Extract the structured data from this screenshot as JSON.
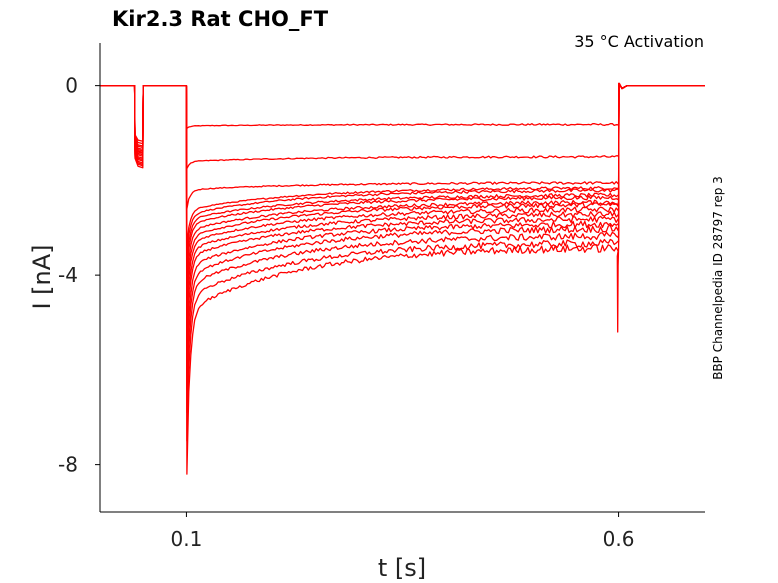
{
  "chart_data": {
    "type": "line",
    "title": "Kir2.3  Rat  CHO_FT",
    "subtitle": "35 °C  Activation",
    "side_note": "BBP Channelpedia ID 28797 rep 3",
    "xlabel": "t [s]",
    "ylabel": "I [nA]",
    "xlim": [
      0.0,
      0.7
    ],
    "ylim": [
      -9.0,
      0.9
    ],
    "xticks": [
      {
        "value": 0.1,
        "label": "0.1"
      },
      {
        "value": 0.6,
        "label": "0.6"
      }
    ],
    "yticks": [
      {
        "value": 0,
        "label": "0"
      },
      {
        "value": -4,
        "label": "-4"
      },
      {
        "value": -8,
        "label": "-8"
      }
    ],
    "grid": false,
    "color": "#ff0000",
    "prepulse": {
      "start": 0.04,
      "end": 0.05
    },
    "step": {
      "start": 0.1,
      "end": 0.6
    },
    "series": [
      {
        "prepulse": -1.15,
        "peak": -0.9,
        "start": -0.85,
        "end": -0.82
      },
      {
        "prepulse": -1.2,
        "peak": -1.75,
        "start": -1.6,
        "end": -1.5
      },
      {
        "prepulse": -1.25,
        "peak": -2.6,
        "start": -2.2,
        "end": -2.05
      },
      {
        "prepulse": -1.28,
        "peak": -3.4,
        "start": -2.62,
        "end": -2.15
      },
      {
        "prepulse": -1.32,
        "peak": -3.6,
        "start": -2.72,
        "end": -2.2
      },
      {
        "prepulse": -1.35,
        "peak": -3.8,
        "start": -2.82,
        "end": -2.3
      },
      {
        "prepulse": -1.38,
        "peak": -4.0,
        "start": -2.92,
        "end": -2.35
      },
      {
        "prepulse": -1.4,
        "peak": -4.3,
        "start": -3.05,
        "end": -2.45
      },
      {
        "prepulse": -1.43,
        "peak": -4.6,
        "start": -3.18,
        "end": -2.5
      },
      {
        "prepulse": -1.46,
        "peak": -4.9,
        "start": -3.3,
        "end": -2.6
      },
      {
        "prepulse": -1.5,
        "peak": -5.2,
        "start": -3.45,
        "end": -2.7
      },
      {
        "prepulse": -1.53,
        "peak": -5.6,
        "start": -3.6,
        "end": -2.8
      },
      {
        "prepulse": -1.56,
        "peak": -6.0,
        "start": -3.8,
        "end": -2.9
      },
      {
        "prepulse": -1.6,
        "peak": -6.4,
        "start": -4.0,
        "end": -3.0
      },
      {
        "prepulse": -1.63,
        "peak": -6.9,
        "start": -4.2,
        "end": -3.15
      },
      {
        "prepulse": -1.66,
        "peak": -7.5,
        "start": -4.45,
        "end": -3.3
      },
      {
        "prepulse": -1.7,
        "peak": -8.2,
        "start": -4.75,
        "end": -3.4
      }
    ]
  }
}
